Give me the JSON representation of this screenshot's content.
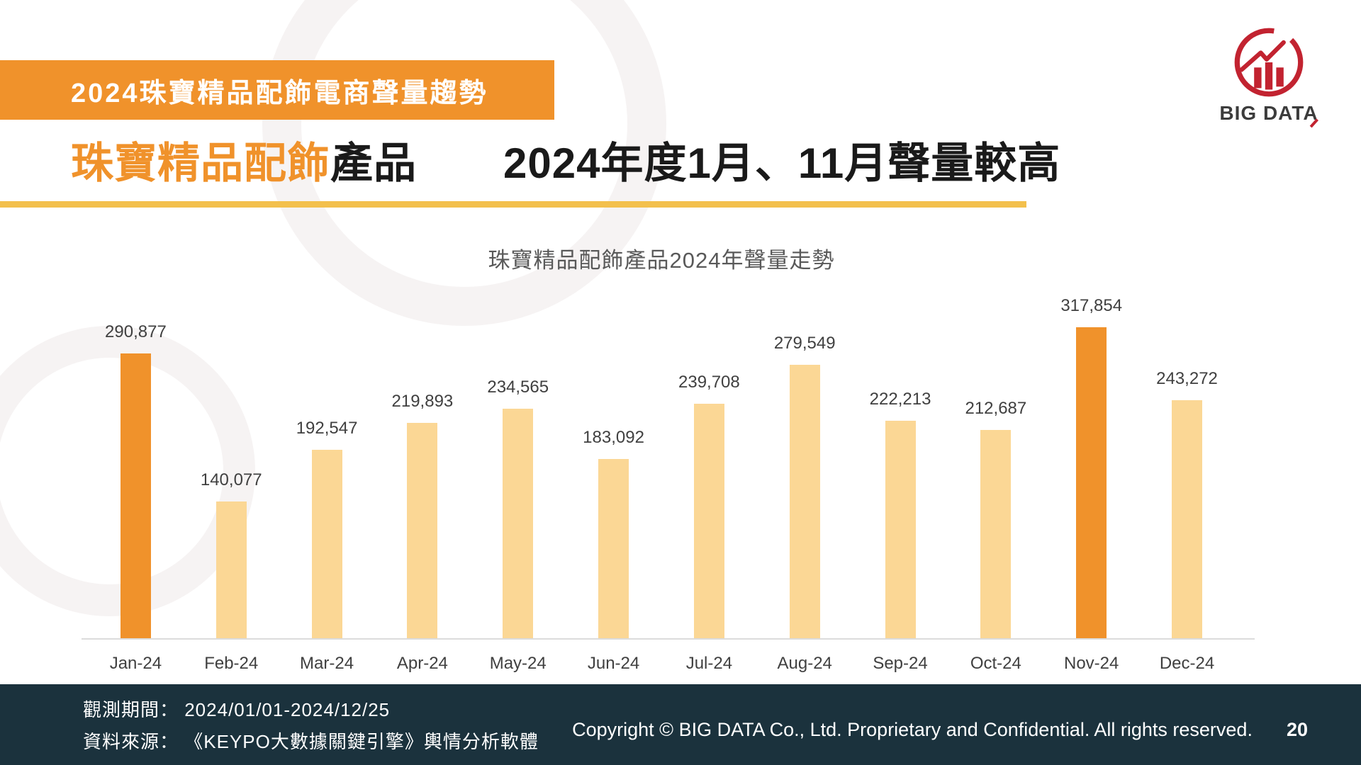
{
  "banner": {
    "label": "2024珠寶精品配飾電商聲量趨勢"
  },
  "title": {
    "highlight": "珠寶精品配飾",
    "rest": "產品　　2024年度1月、11月聲量較高"
  },
  "logo": {
    "text": "BIG DATA"
  },
  "chart_data": {
    "type": "bar",
    "title": "珠寶精品配飾產品2024年聲量走勢",
    "categories": [
      "Jan-24",
      "Feb-24",
      "Mar-24",
      "Apr-24",
      "May-24",
      "Jun-24",
      "Jul-24",
      "Aug-24",
      "Sep-24",
      "Oct-24",
      "Nov-24",
      "Dec-24"
    ],
    "values": [
      290877,
      140077,
      192547,
      219893,
      234565,
      183092,
      239708,
      279549,
      222213,
      212687,
      317854,
      243272
    ],
    "value_labels": [
      "290,877",
      "140,077",
      "192,547",
      "219,893",
      "234,565",
      "183,092",
      "239,708",
      "279,549",
      "222,213",
      "212,687",
      "317,854",
      "243,272"
    ],
    "highlight_indices": [
      0,
      10
    ],
    "xlabel": "",
    "ylabel": "",
    "ylim": [
      0,
      330000
    ],
    "grid": false,
    "legend": false,
    "colors": {
      "bar": "#fbd795",
      "highlight": "#f0922b",
      "label": "#404040",
      "axis_line": "#dcdcdc",
      "title": "#595959"
    }
  },
  "footer": {
    "observation": "觀測期間： 2024/01/01-2024/12/25",
    "source": "資料來源： 《KEYPO大數據關鍵引擎》輿情分析軟體",
    "copyright": "Copyright © BIG DATA Co., Ltd. Proprietary and Confidential. All rights reserved.",
    "page_number": "20",
    "background": "#1b323d"
  },
  "theme": {
    "accent_orange": "#f0922b",
    "underline_gold": "#f3c04c",
    "logo_red": "#c22330",
    "decoration_gray": "#f6f3f3"
  }
}
